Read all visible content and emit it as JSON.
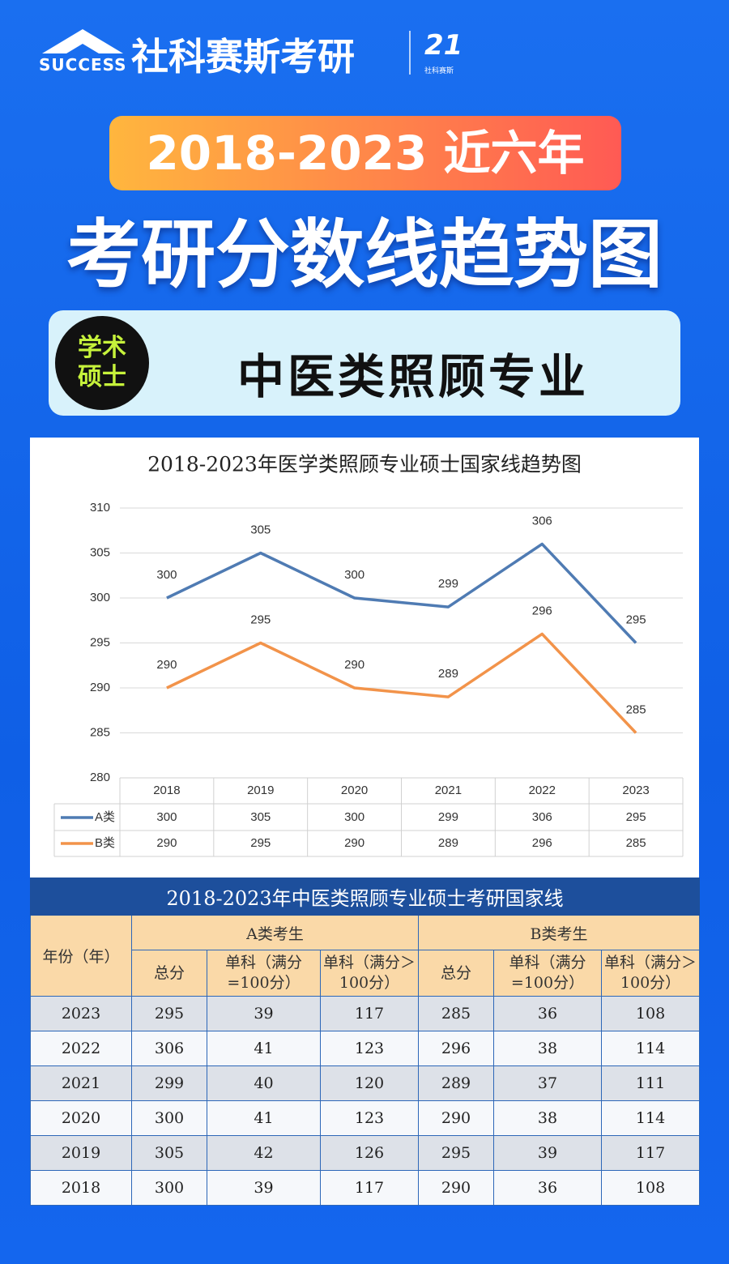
{
  "header": {
    "brand_en": "SUCCESS",
    "brand_cn": "社科赛斯考研",
    "logo_small": "社科赛斯",
    "ribbon": "2018-2023 近六年",
    "title": "考研分数线趋势图",
    "badge": [
      "学术",
      "硕士"
    ],
    "subject": "中医类照顾专业"
  },
  "chart_data": {
    "type": "line",
    "title": "2018-2023年医学类照顾专业硕士国家线趋势图",
    "categories": [
      "2018",
      "2019",
      "2020",
      "2021",
      "2022",
      "2023"
    ],
    "series": [
      {
        "name": "A类",
        "color": "#4f7bb3",
        "values": [
          300,
          305,
          300,
          299,
          306,
          295
        ]
      },
      {
        "name": "B类",
        "color": "#f2934a",
        "values": [
          290,
          295,
          290,
          289,
          296,
          285
        ]
      }
    ],
    "ylim": [
      280,
      310
    ],
    "yticks": [
      280,
      285,
      290,
      295,
      300,
      305,
      310
    ],
    "grid": true
  },
  "table": {
    "title": "2018-2023年中医类照顾专业硕士考研国家线",
    "year_header": "年份（年）",
    "groups": [
      "A类考生",
      "B类考生"
    ],
    "subheaders": [
      "总分",
      "单科（满分=100分）",
      "单科（满分＞100分）"
    ],
    "rows": [
      [
        "2023",
        295,
        39,
        117,
        285,
        36,
        108
      ],
      [
        "2022",
        306,
        41,
        123,
        296,
        38,
        114
      ],
      [
        "2021",
        299,
        40,
        120,
        289,
        37,
        111
      ],
      [
        "2020",
        300,
        41,
        123,
        290,
        38,
        114
      ],
      [
        "2019",
        305,
        42,
        126,
        295,
        39,
        117
      ],
      [
        "2018",
        300,
        39,
        117,
        290,
        36,
        108
      ]
    ]
  }
}
